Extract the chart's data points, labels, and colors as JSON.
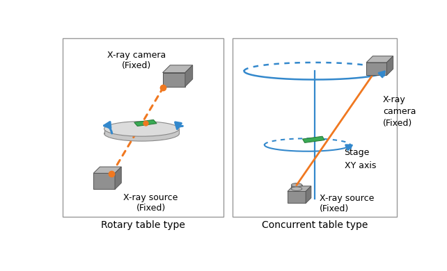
{
  "fig_width": 6.42,
  "fig_height": 3.9,
  "dpi": 100,
  "bg_color": "#ffffff",
  "orange_color": "#f07820",
  "blue_color": "#3388cc",
  "green_color": "#3aaa55",
  "title_left": "Rotary table type",
  "title_right": "Concurrent table type",
  "label_camera_left": "X-ray camera\n(Fixed)",
  "label_source_left": "X-ray source\n(Fixed)",
  "label_camera_right": "X-ray\ncamera\n(Fixed)",
  "label_source_right": "X-ray source\n(Fixed)",
  "label_stage": "Stage\nXY axis"
}
